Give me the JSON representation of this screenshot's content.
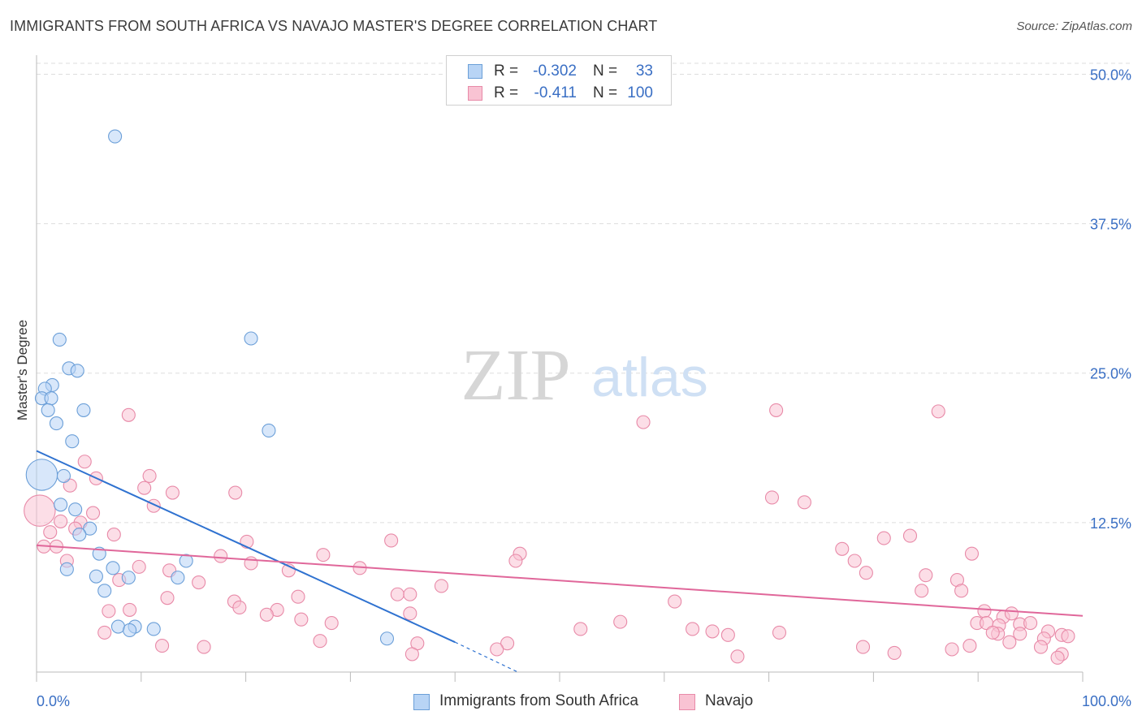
{
  "header": {
    "title": "IMMIGRANTS FROM SOUTH AFRICA VS NAVAJO MASTER'S DEGREE CORRELATION CHART",
    "source": "Source: ZipAtlas.com"
  },
  "watermark": {
    "zip": "ZIP",
    "atlas": "atlas"
  },
  "legend": {
    "rows": [
      {
        "r_label": "R =",
        "r_value": "-0.302",
        "n_label": "N =",
        "n_value": "33"
      },
      {
        "r_label": "R =",
        "r_value": "-0.411",
        "n_label": "N =",
        "n_value": "100"
      }
    ]
  },
  "bottom_legend": {
    "items": [
      {
        "label": "Immigrants from South Africa"
      },
      {
        "label": "Navajo"
      }
    ]
  },
  "colors": {
    "blue_fill": "#b8d4f5",
    "blue_stroke": "#6b9fd8",
    "blue_line": "#2f72d0",
    "pink_fill": "#f9c3d3",
    "pink_stroke": "#e88aa8",
    "pink_line": "#e0679a",
    "grid": "#dddddd",
    "axis_text": "#3a6fc4"
  },
  "chart_data": {
    "type": "scatter",
    "title": "IMMIGRANTS FROM SOUTH AFRICA VS NAVAJO MASTER'S DEGREE CORRELATION CHART",
    "xlabel": "",
    "ylabel": "Master's Degree",
    "xlim": [
      0,
      100
    ],
    "ylim": [
      0,
      52
    ],
    "x_tick_labels": [
      "0.0%",
      "100.0%"
    ],
    "y_ticks": [
      12.5,
      25.0,
      37.5,
      50.0
    ],
    "y_tick_labels": [
      "12.5%",
      "25.0%",
      "37.5%",
      "50.0%"
    ],
    "series": [
      {
        "name": "Immigrants from South Africa",
        "r": -0.302,
        "n": 33,
        "trend": {
          "x0": 0,
          "y0": 18.5,
          "x1": 40,
          "y1": 2.5,
          "dash_x1": 46,
          "dash_y1": 0
        },
        "points": [
          [
            0.5,
            16.5,
            2.4
          ],
          [
            7.5,
            44.8,
            1
          ],
          [
            2.2,
            27.8,
            1
          ],
          [
            20.5,
            27.9,
            1
          ],
          [
            3.1,
            25.4,
            1
          ],
          [
            3.9,
            25.2,
            1
          ],
          [
            1.5,
            24.0,
            1
          ],
          [
            0.8,
            23.7,
            1
          ],
          [
            0.5,
            22.9,
            1
          ],
          [
            1.4,
            22.9,
            1
          ],
          [
            1.1,
            21.9,
            1
          ],
          [
            4.5,
            21.9,
            1
          ],
          [
            1.9,
            20.8,
            1
          ],
          [
            3.4,
            19.3,
            1
          ],
          [
            22.2,
            20.2,
            1
          ],
          [
            2.6,
            16.4,
            1
          ],
          [
            2.3,
            14.0,
            1
          ],
          [
            3.7,
            13.6,
            1
          ],
          [
            5.1,
            12.0,
            1
          ],
          [
            4.1,
            11.5,
            1
          ],
          [
            6.0,
            9.9,
            1
          ],
          [
            14.3,
            9.3,
            1
          ],
          [
            2.9,
            8.6,
            1
          ],
          [
            7.3,
            8.7,
            1
          ],
          [
            5.7,
            8.0,
            1
          ],
          [
            8.8,
            7.9,
            1
          ],
          [
            13.5,
            7.9,
            1
          ],
          [
            6.5,
            6.8,
            1
          ],
          [
            7.8,
            3.8,
            1
          ],
          [
            9.4,
            3.8,
            1
          ],
          [
            11.2,
            3.6,
            1
          ],
          [
            8.9,
            3.5,
            1
          ],
          [
            33.5,
            2.8,
            1
          ]
        ]
      },
      {
        "name": "Navajo",
        "r": -0.411,
        "n": 100,
        "trend": {
          "x0": 0,
          "y0": 10.6,
          "x1": 100,
          "y1": 4.7
        },
        "points": [
          [
            0.3,
            13.5,
            2.4
          ],
          [
            8.8,
            21.5,
            1
          ],
          [
            4.6,
            17.6,
            1
          ],
          [
            5.7,
            16.2,
            1
          ],
          [
            10.8,
            16.4,
            1
          ],
          [
            3.2,
            15.6,
            1
          ],
          [
            10.3,
            15.4,
            1
          ],
          [
            13.0,
            15.0,
            1
          ],
          [
            19.0,
            15.0,
            1
          ],
          [
            11.2,
            13.9,
            1
          ],
          [
            5.4,
            13.3,
            1
          ],
          [
            2.3,
            12.6,
            1
          ],
          [
            4.2,
            12.5,
            1
          ],
          [
            3.7,
            12.0,
            1
          ],
          [
            1.3,
            11.7,
            1
          ],
          [
            7.4,
            11.5,
            1
          ],
          [
            20.1,
            10.9,
            1
          ],
          [
            0.7,
            10.5,
            1
          ],
          [
            1.9,
            10.5,
            1
          ],
          [
            17.6,
            9.7,
            1
          ],
          [
            27.4,
            9.8,
            1
          ],
          [
            33.9,
            11.0,
            1
          ],
          [
            46.2,
            9.9,
            1
          ],
          [
            45.8,
            9.3,
            1
          ],
          [
            2.9,
            9.3,
            1
          ],
          [
            9.8,
            8.8,
            1
          ],
          [
            12.7,
            8.5,
            1
          ],
          [
            20.5,
            9.1,
            1
          ],
          [
            30.9,
            8.7,
            1
          ],
          [
            24.1,
            8.5,
            1
          ],
          [
            7.9,
            7.7,
            1
          ],
          [
            15.5,
            7.5,
            1
          ],
          [
            38.7,
            7.2,
            1
          ],
          [
            34.5,
            6.5,
            1
          ],
          [
            35.7,
            6.5,
            1
          ],
          [
            12.5,
            6.2,
            1
          ],
          [
            18.9,
            5.9,
            1
          ],
          [
            19.4,
            5.4,
            1
          ],
          [
            25.0,
            6.3,
            1
          ],
          [
            8.9,
            5.2,
            1
          ],
          [
            23.0,
            5.2,
            1
          ],
          [
            6.9,
            5.1,
            1
          ],
          [
            22.0,
            4.8,
            1
          ],
          [
            25.3,
            4.4,
            1
          ],
          [
            35.7,
            4.9,
            1
          ],
          [
            28.2,
            4.1,
            1
          ],
          [
            55.8,
            4.2,
            1
          ],
          [
            52.0,
            3.6,
            1
          ],
          [
            62.7,
            3.6,
            1
          ],
          [
            64.6,
            3.4,
            1
          ],
          [
            66.1,
            3.1,
            1
          ],
          [
            71.0,
            3.3,
            1
          ],
          [
            6.5,
            3.3,
            1
          ],
          [
            12.0,
            2.2,
            1
          ],
          [
            16.0,
            2.1,
            1
          ],
          [
            27.1,
            2.6,
            1
          ],
          [
            36.4,
            2.4,
            1
          ],
          [
            45.0,
            2.4,
            1
          ],
          [
            35.9,
            1.5,
            1
          ],
          [
            58.0,
            20.9,
            1
          ],
          [
            70.7,
            21.9,
            1
          ],
          [
            86.2,
            21.8,
            1
          ],
          [
            70.3,
            14.6,
            1
          ],
          [
            73.4,
            14.2,
            1
          ],
          [
            83.5,
            11.4,
            1
          ],
          [
            81.0,
            11.2,
            1
          ],
          [
            77.0,
            10.3,
            1
          ],
          [
            78.2,
            9.3,
            1
          ],
          [
            79.3,
            8.3,
            1
          ],
          [
            89.4,
            9.9,
            1
          ],
          [
            85.0,
            8.1,
            1
          ],
          [
            88.0,
            7.7,
            1
          ],
          [
            84.6,
            6.8,
            1
          ],
          [
            88.4,
            6.8,
            1
          ],
          [
            61.0,
            5.9,
            1
          ],
          [
            90.6,
            5.1,
            1
          ],
          [
            92.4,
            4.6,
            1
          ],
          [
            93.2,
            4.9,
            1
          ],
          [
            89.9,
            4.1,
            1
          ],
          [
            90.8,
            4.1,
            1
          ],
          [
            92.0,
            3.9,
            1
          ],
          [
            94.0,
            4.0,
            1
          ],
          [
            95.0,
            4.1,
            1
          ],
          [
            91.9,
            3.2,
            1
          ],
          [
            91.4,
            3.3,
            1
          ],
          [
            94.0,
            3.2,
            1
          ],
          [
            96.7,
            3.4,
            1
          ],
          [
            93.0,
            2.5,
            1
          ],
          [
            96.3,
            2.8,
            1
          ],
          [
            98.0,
            3.1,
            1
          ],
          [
            98.6,
            3.0,
            1
          ],
          [
            87.5,
            1.9,
            1
          ],
          [
            89.2,
            2.2,
            1
          ],
          [
            96.0,
            2.1,
            1
          ],
          [
            98.0,
            1.5,
            1
          ],
          [
            97.6,
            1.2,
            1
          ],
          [
            79.0,
            2.1,
            1
          ],
          [
            82.0,
            1.6,
            1
          ],
          [
            67.0,
            1.3,
            1
          ],
          [
            44.0,
            1.9,
            1
          ]
        ]
      }
    ]
  }
}
